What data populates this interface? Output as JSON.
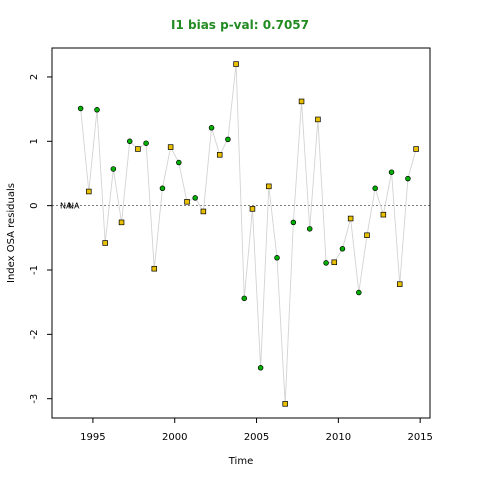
{
  "chart_data": {
    "type": "scatter",
    "title": "I1 bias p-val: 0.7057",
    "title_color": "#228b22",
    "xlabel": "Time",
    "ylabel": "Index OSA residuals",
    "xlim": [
      1992.5,
      2015.6
    ],
    "ylim": [
      -3.3,
      2.45
    ],
    "x_ticks": [
      1995,
      2000,
      2005,
      2010,
      2015
    ],
    "y_ticks": [
      -3,
      -2,
      -1,
      0,
      1,
      2
    ],
    "zero_line_label": "NA",
    "connect_line_color": "#d3d3d3",
    "zero_line_color": "#555555",
    "series": [
      {
        "marker": "circle",
        "fill": "#00b000",
        "x": [
          1994.25,
          1995.25,
          1996.25,
          1997.25,
          1998.25,
          1999.25,
          2000.25,
          2001.25,
          2002.25,
          2003.25,
          2004.25,
          2005.25,
          2006.25,
          2007.25,
          2008.25,
          2009.25,
          2010.25,
          2011.25,
          2012.25,
          2013.25,
          2014.25
        ],
        "y": [
          1.51,
          1.49,
          0.57,
          1.0,
          0.97,
          0.27,
          0.67,
          0.12,
          1.21,
          1.03,
          -1.44,
          -2.52,
          -0.81,
          -0.26,
          -0.36,
          -0.89,
          -0.67,
          -1.35,
          0.27,
          0.52,
          0.42
        ]
      },
      {
        "marker": "square",
        "fill": "#e8c000",
        "x": [
          1994.75,
          1995.75,
          1996.75,
          1997.75,
          1998.75,
          1999.75,
          2000.75,
          2001.75,
          2002.75,
          2003.75,
          2004.75,
          2005.75,
          2006.75,
          2007.75,
          2008.75,
          2009.75,
          2010.75,
          2011.75,
          2012.75,
          2013.75,
          2014.75
        ],
        "y": [
          0.22,
          -0.58,
          -0.26,
          0.88,
          -0.98,
          0.91,
          0.06,
          -0.09,
          0.79,
          2.2,
          -0.05,
          0.3,
          -3.08,
          1.62,
          1.34,
          -0.88,
          -0.2,
          -0.46,
          -0.14,
          -1.22,
          0.88
        ]
      }
    ]
  }
}
